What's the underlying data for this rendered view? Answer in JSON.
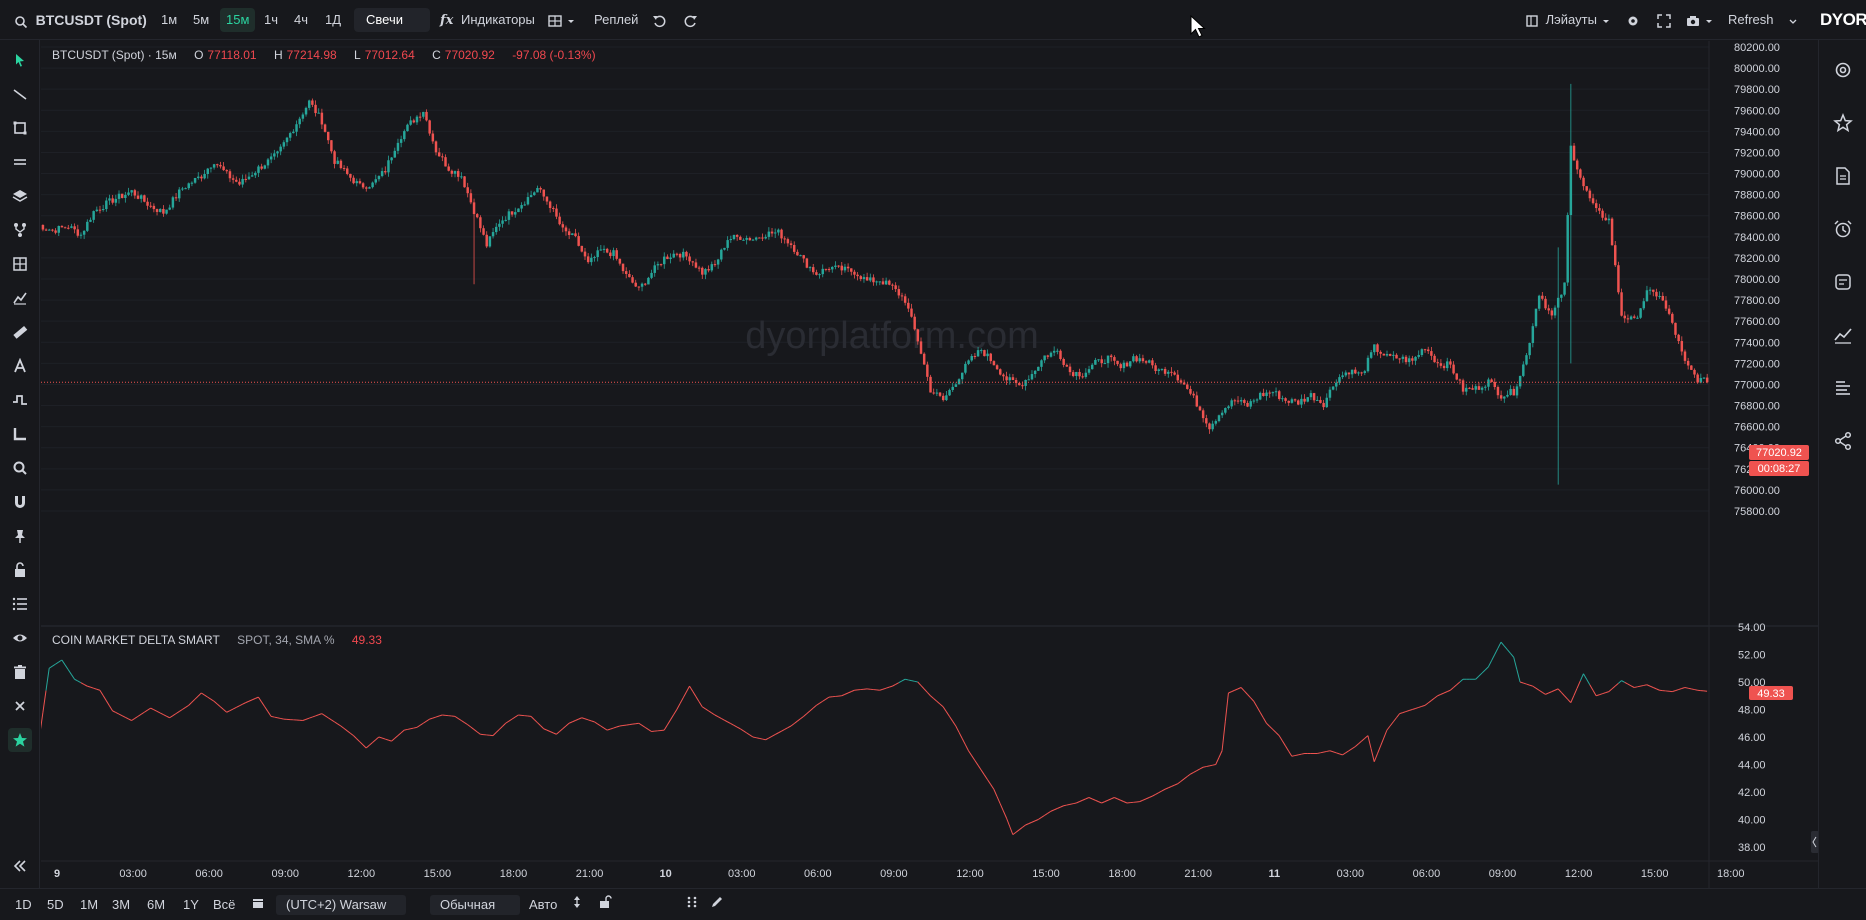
{
  "toolbar": {
    "symbol": "BTCUSDT (Spot)",
    "intervals": [
      "1м",
      "5м",
      "15м",
      "1ч",
      "4ч",
      "1Д"
    ],
    "active_interval": "15м",
    "chart_type": "Свечи",
    "indicators_label": "Индикаторы",
    "indicators_icon": "fx",
    "replay_label": "Реплей",
    "layouts_label": "Лэйауты",
    "refresh_label": "Refresh",
    "logo": "DYOR"
  },
  "legend": {
    "title": "BTCUSDT (Spot) · 15м",
    "o_label": "O",
    "o": "77118.01",
    "h_label": "H",
    "h": "77214.98",
    "l_label": "L",
    "l": "77012.64",
    "c_label": "C",
    "c": "77020.92",
    "change": "-97.08 (-0.13%)"
  },
  "indicator": {
    "name": "COIN MARKET DELTA SMART",
    "params": "SPOT, 34, SMA %",
    "value": "49.33"
  },
  "watermark": "dyorplatform.com",
  "price_badge": {
    "price": "77020.92",
    "countdown": "00:08:27"
  },
  "indicator_badge": "49.33",
  "colors": {
    "up": "#26a69a",
    "down": "#ef5350",
    "accent": "#2bd4a0",
    "bg": "#17181c"
  },
  "bottom": {
    "ranges": [
      "1D",
      "5D",
      "1M",
      "3M",
      "6M",
      "1Y",
      "Всё"
    ],
    "timezone": "(UTC+2) Warsaw",
    "scale_mode": "Обычная",
    "auto_label": "Авто"
  },
  "chart_data": {
    "type": "candlestick",
    "price_axis": {
      "min": 75800,
      "max": 80200,
      "step": 200,
      "ticks": [
        "80200.00",
        "80000.00",
        "79800.00",
        "79600.00",
        "79400.00",
        "79200.00",
        "79000.00",
        "78800.00",
        "78600.00",
        "78400.00",
        "78200.00",
        "78000.00",
        "77800.00",
        "77600.00",
        "77400.00",
        "77200.00",
        "77000.00",
        "76800.00",
        "76600.00",
        "76400.00",
        "76200.00",
        "76000.00",
        "75800.00"
      ]
    },
    "indicator_axis": {
      "min": 38,
      "max": 54,
      "ticks": [
        "54.00",
        "52.00",
        "50.00",
        "48.00",
        "46.00",
        "44.00",
        "42.00",
        "40.00",
        "38.00"
      ]
    },
    "time_ticks": [
      "9",
      "03:00",
      "06:00",
      "09:00",
      "12:00",
      "15:00",
      "18:00",
      "21:00",
      "10",
      "03:00",
      "06:00",
      "09:00",
      "12:00",
      "15:00",
      "18:00",
      "21:00",
      "11",
      "03:00",
      "06:00",
      "09:00",
      "12:00",
      "15:00",
      "18:00"
    ],
    "bold_time_ticks": [
      "9",
      "10",
      "11"
    ],
    "last_price": 77020.92,
    "close_anchors": [
      [
        0,
        78520
      ],
      [
        5,
        78460
      ],
      [
        10,
        78500
      ],
      [
        14,
        78420
      ],
      [
        18,
        78640
      ],
      [
        24,
        78750
      ],
      [
        30,
        78830
      ],
      [
        36,
        78690
      ],
      [
        40,
        78630
      ],
      [
        46,
        78860
      ],
      [
        52,
        78980
      ],
      [
        56,
        79120
      ],
      [
        60,
        78990
      ],
      [
        64,
        78900
      ],
      [
        70,
        79050
      ],
      [
        76,
        79180
      ],
      [
        80,
        79380
      ],
      [
        86,
        79680
      ],
      [
        90,
        79500
      ],
      [
        94,
        79120
      ],
      [
        98,
        78990
      ],
      [
        102,
        78880
      ],
      [
        106,
        78900
      ],
      [
        110,
        79030
      ],
      [
        114,
        79320
      ],
      [
        118,
        79480
      ],
      [
        122,
        79600
      ],
      [
        126,
        79220
      ],
      [
        130,
        79050
      ],
      [
        134,
        78980
      ],
      [
        138,
        78650
      ],
      [
        142,
        78320
      ],
      [
        146,
        78540
      ],
      [
        150,
        78640
      ],
      [
        154,
        78740
      ],
      [
        158,
        78860
      ],
      [
        162,
        78700
      ],
      [
        166,
        78460
      ],
      [
        170,
        78380
      ],
      [
        174,
        78140
      ],
      [
        178,
        78270
      ],
      [
        182,
        78240
      ],
      [
        186,
        78030
      ],
      [
        190,
        77900
      ],
      [
        194,
        78060
      ],
      [
        198,
        78200
      ],
      [
        202,
        78250
      ],
      [
        206,
        78200
      ],
      [
        210,
        78060
      ],
      [
        214,
        78130
      ],
      [
        218,
        78380
      ],
      [
        222,
        78400
      ],
      [
        226,
        78380
      ],
      [
        230,
        78430
      ],
      [
        234,
        78440
      ],
      [
        238,
        78330
      ],
      [
        242,
        78170
      ],
      [
        246,
        78050
      ],
      [
        250,
        78110
      ],
      [
        254,
        78090
      ],
      [
        258,
        78070
      ],
      [
        262,
        77980
      ],
      [
        266,
        77990
      ],
      [
        270,
        77920
      ],
      [
        274,
        77800
      ],
      [
        278,
        77420
      ],
      [
        282,
        76950
      ],
      [
        286,
        76850
      ],
      [
        290,
        77030
      ],
      [
        294,
        77210
      ],
      [
        298,
        77330
      ],
      [
        302,
        77200
      ],
      [
        306,
        77050
      ],
      [
        310,
        76990
      ],
      [
        314,
        77100
      ],
      [
        318,
        77270
      ],
      [
        322,
        77320
      ],
      [
        326,
        77120
      ],
      [
        330,
        77100
      ],
      [
        334,
        77200
      ],
      [
        338,
        77250
      ],
      [
        342,
        77150
      ],
      [
        346,
        77260
      ],
      [
        350,
        77220
      ],
      [
        354,
        77130
      ],
      [
        358,
        77140
      ],
      [
        362,
        77000
      ],
      [
        366,
        76820
      ],
      [
        370,
        76600
      ],
      [
        374,
        76760
      ],
      [
        378,
        76850
      ],
      [
        382,
        76800
      ],
      [
        386,
        76900
      ],
      [
        390,
        76930
      ],
      [
        394,
        76850
      ],
      [
        398,
        76830
      ],
      [
        402,
        76900
      ],
      [
        406,
        76820
      ],
      [
        410,
        77050
      ],
      [
        414,
        77130
      ],
      [
        418,
        77090
      ],
      [
        422,
        77350
      ],
      [
        426,
        77260
      ],
      [
        430,
        77250
      ],
      [
        434,
        77220
      ],
      [
        438,
        77360
      ],
      [
        442,
        77200
      ],
      [
        446,
        77180
      ],
      [
        450,
        76950
      ],
      [
        454,
        76960
      ],
      [
        458,
        77030
      ],
      [
        462,
        76900
      ],
      [
        466,
        76930
      ],
      [
        470,
        77270
      ],
      [
        474,
        77870
      ],
      [
        478,
        77640
      ],
      [
        482,
        77940
      ],
      [
        484,
        79250
      ],
      [
        488,
        78880
      ],
      [
        492,
        78640
      ],
      [
        496,
        78560
      ],
      [
        500,
        77660
      ],
      [
        504,
        77600
      ],
      [
        508,
        77870
      ],
      [
        512,
        77850
      ],
      [
        516,
        77580
      ],
      [
        520,
        77200
      ],
      [
        524,
        77050
      ],
      [
        527,
        77020.92
      ]
    ],
    "indicator_anchors": [
      [
        0,
        44.5
      ],
      [
        4,
        51.0
      ],
      [
        8,
        51.6
      ],
      [
        12,
        50.2
      ],
      [
        16,
        49.7
      ],
      [
        20,
        49.4
      ],
      [
        24,
        47.9
      ],
      [
        30,
        47.2
      ],
      [
        36,
        48.1
      ],
      [
        42,
        47.4
      ],
      [
        48,
        48.3
      ],
      [
        52,
        49.2
      ],
      [
        56,
        48.6
      ],
      [
        60,
        47.8
      ],
      [
        66,
        48.5
      ],
      [
        70,
        48.9
      ],
      [
        74,
        47.5
      ],
      [
        78,
        47.3
      ],
      [
        84,
        47.2
      ],
      [
        90,
        47.7
      ],
      [
        96,
        46.8
      ],
      [
        100,
        46.1
      ],
      [
        104,
        45.2
      ],
      [
        108,
        46.0
      ],
      [
        112,
        45.7
      ],
      [
        116,
        46.5
      ],
      [
        120,
        46.7
      ],
      [
        124,
        47.3
      ],
      [
        128,
        47.6
      ],
      [
        132,
        47.5
      ],
      [
        136,
        46.9
      ],
      [
        140,
        46.2
      ],
      [
        144,
        46.1
      ],
      [
        148,
        47.0
      ],
      [
        152,
        47.6
      ],
      [
        156,
        47.5
      ],
      [
        160,
        46.6
      ],
      [
        164,
        46.2
      ],
      [
        168,
        47.0
      ],
      [
        172,
        47.4
      ],
      [
        176,
        47.1
      ],
      [
        180,
        46.5
      ],
      [
        184,
        46.8
      ],
      [
        190,
        47.0
      ],
      [
        194,
        46.4
      ],
      [
        198,
        46.5
      ],
      [
        202,
        48.0
      ],
      [
        206,
        49.7
      ],
      [
        210,
        48.2
      ],
      [
        214,
        47.6
      ],
      [
        218,
        47.1
      ],
      [
        222,
        46.6
      ],
      [
        226,
        46.0
      ],
      [
        230,
        45.8
      ],
      [
        234,
        46.3
      ],
      [
        238,
        46.8
      ],
      [
        242,
        47.5
      ],
      [
        246,
        48.3
      ],
      [
        250,
        48.9
      ],
      [
        254,
        49.0
      ],
      [
        258,
        49.4
      ],
      [
        262,
        49.5
      ],
      [
        266,
        49.4
      ],
      [
        270,
        49.7
      ],
      [
        274,
        50.2
      ],
      [
        278,
        50.0
      ],
      [
        282,
        49.0
      ],
      [
        286,
        48.2
      ],
      [
        290,
        46.8
      ],
      [
        294,
        45.0
      ],
      [
        298,
        43.6
      ],
      [
        302,
        42.2
      ],
      [
        306,
        40.1
      ],
      [
        308,
        38.9
      ],
      [
        312,
        39.6
      ],
      [
        316,
        40.0
      ],
      [
        320,
        40.6
      ],
      [
        324,
        41.0
      ],
      [
        328,
        41.2
      ],
      [
        332,
        41.6
      ],
      [
        336,
        41.2
      ],
      [
        340,
        41.6
      ],
      [
        344,
        41.2
      ],
      [
        348,
        41.3
      ],
      [
        352,
        41.7
      ],
      [
        356,
        42.2
      ],
      [
        360,
        42.6
      ],
      [
        364,
        43.3
      ],
      [
        368,
        43.8
      ],
      [
        372,
        44.0
      ],
      [
        374,
        45.0
      ],
      [
        376,
        49.2
      ],
      [
        380,
        49.6
      ],
      [
        384,
        48.6
      ],
      [
        388,
        47.0
      ],
      [
        392,
        46.1
      ],
      [
        396,
        44.6
      ],
      [
        400,
        44.8
      ],
      [
        404,
        44.8
      ],
      [
        408,
        45.0
      ],
      [
        412,
        44.7
      ],
      [
        416,
        45.3
      ],
      [
        420,
        46.1
      ],
      [
        422,
        44.2
      ],
      [
        426,
        46.5
      ],
      [
        430,
        47.7
      ],
      [
        434,
        48.0
      ],
      [
        438,
        48.3
      ],
      [
        442,
        49.0
      ],
      [
        446,
        49.4
      ],
      [
        450,
        50.2
      ],
      [
        454,
        50.2
      ],
      [
        458,
        51.1
      ],
      [
        462,
        52.9
      ],
      [
        466,
        51.8
      ],
      [
        468,
        50.0
      ],
      [
        472,
        49.7
      ],
      [
        476,
        49.1
      ],
      [
        480,
        49.5
      ],
      [
        484,
        48.5
      ],
      [
        488,
        50.6
      ],
      [
        492,
        49.0
      ],
      [
        496,
        49.3
      ],
      [
        500,
        50.1
      ],
      [
        504,
        49.6
      ],
      [
        508,
        49.8
      ],
      [
        512,
        49.4
      ],
      [
        516,
        49.3
      ],
      [
        520,
        49.6
      ],
      [
        524,
        49.4
      ],
      [
        527,
        49.33
      ]
    ]
  }
}
